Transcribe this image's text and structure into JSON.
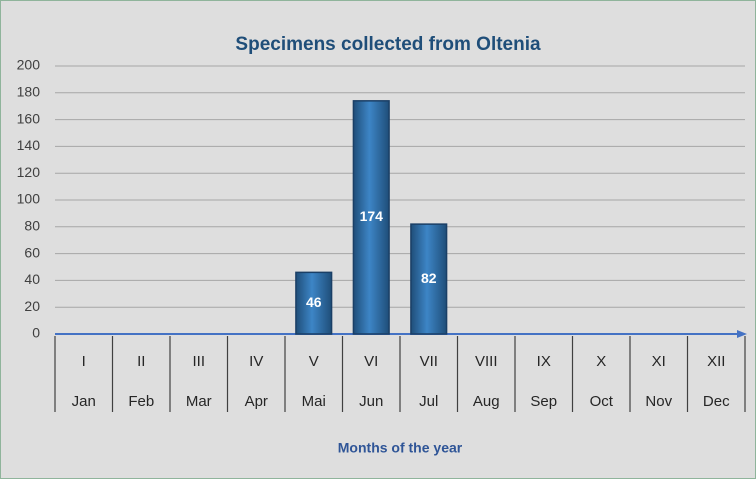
{
  "chart_data": {
    "type": "bar",
    "title": "Specimens collected from Oltenia",
    "x_label": "Months of the year",
    "categories": [
      "I",
      "II",
      "III",
      "IV",
      "V",
      "VI",
      "VII",
      "VIII",
      "IX",
      "X",
      "XI",
      "XII"
    ],
    "subcategories": [
      "Jan",
      "Feb",
      "Mar",
      "Apr",
      "Mai",
      "Jun",
      "Jul",
      "Aug",
      "Sep",
      "Oct",
      "Nov",
      "Dec"
    ],
    "values": [
      0,
      0,
      0,
      0,
      46,
      174,
      82,
      0,
      0,
      0,
      0,
      0
    ],
    "color": "#2e75b6",
    "ylim": [
      0,
      200
    ],
    "yticks": [
      0,
      20,
      40,
      60,
      80,
      100,
      120,
      140,
      160,
      180,
      200
    ],
    "grid": true
  }
}
